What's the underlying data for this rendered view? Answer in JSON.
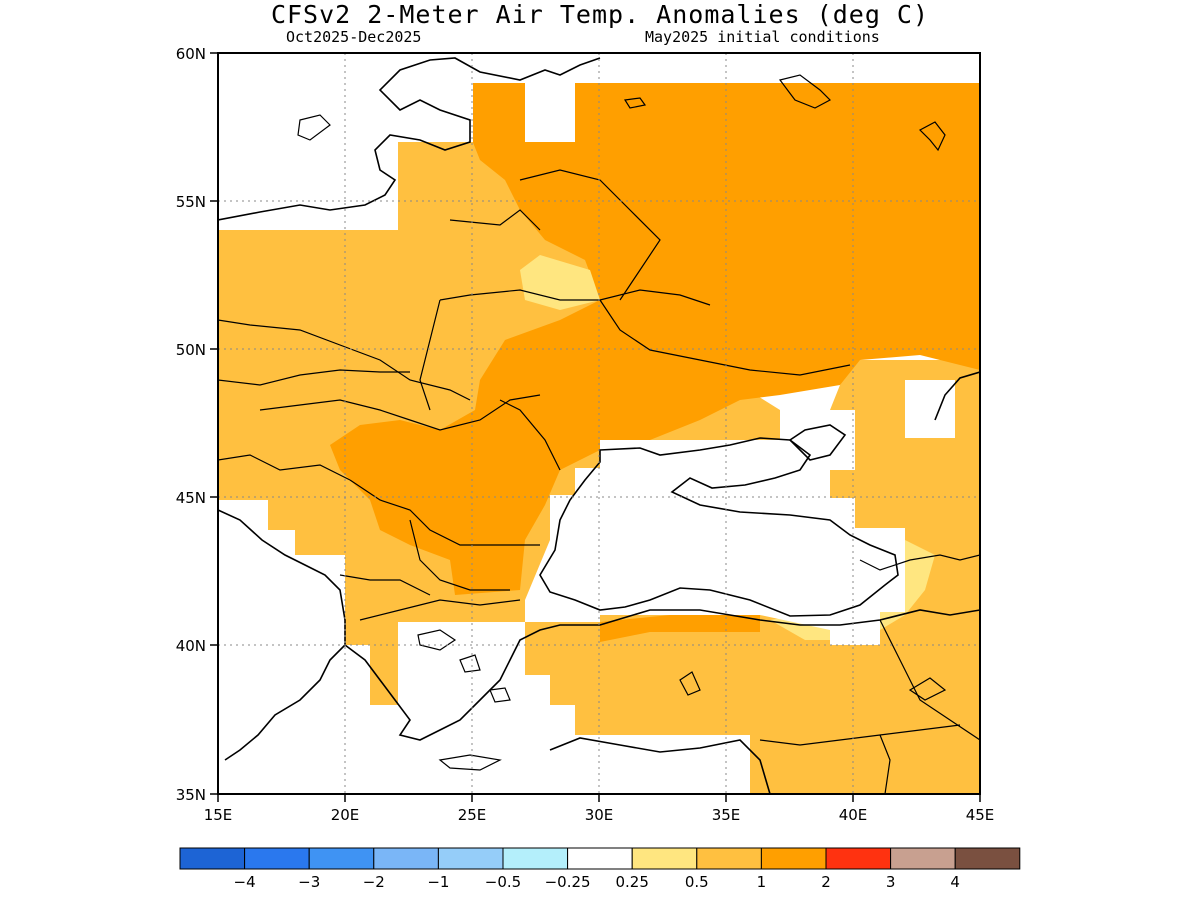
{
  "title": "CFSv2 2-Meter Air Temp. Anomalies (deg C)",
  "period": "Oct2025-Dec2025",
  "initial_conditions": "May2025 initial conditions",
  "map": {
    "lon_ticks": [
      "15E",
      "20E",
      "25E",
      "30E",
      "35E",
      "40E",
      "45E"
    ],
    "lat_ticks": [
      "60N",
      "55N",
      "50N",
      "45N",
      "40N",
      "35N"
    ],
    "lon_range": [
      15,
      45
    ],
    "lat_range": [
      35,
      60
    ]
  },
  "colorbar": {
    "labels": [
      "-4",
      "-3",
      "-2",
      "-1",
      "-0.5",
      "-0.25",
      "0.25",
      "0.5",
      "1",
      "2",
      "3",
      "4"
    ],
    "colors": [
      "#1d64d5",
      "#2a78ee",
      "#3f93f3",
      "#7ab6f7",
      "#95cdf9",
      "#b4effb",
      "#ffffff",
      "#ffe680",
      "#ffc040",
      "#ff9f00",
      "#ff3210",
      "#c8a090",
      "#7a5040"
    ]
  },
  "colors": {
    "anom_0_5_1": "#ffc040",
    "anom_1_2": "#ff9f00",
    "anom_0_25_0_5": "#ffe680",
    "land_no_signal": "#ffffff"
  }
}
